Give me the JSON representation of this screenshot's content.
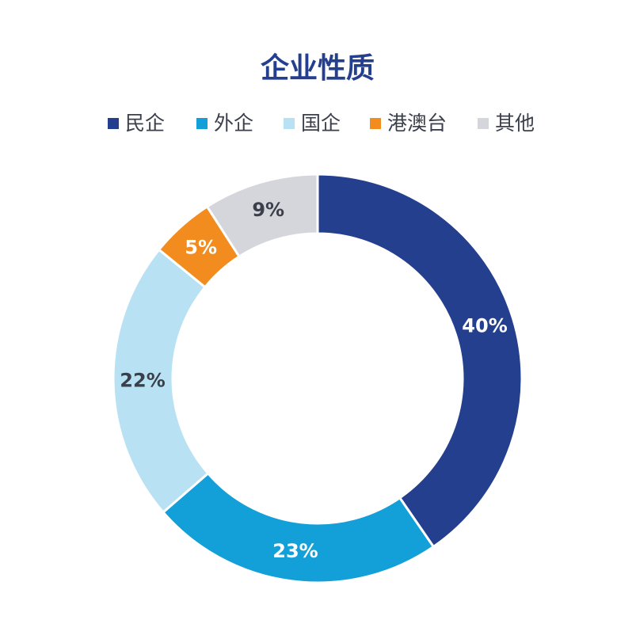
{
  "chart_data": {
    "type": "pie",
    "title": "企业性质",
    "categories": [
      "民企",
      "外企",
      "国企",
      "港澳台",
      "其他"
    ],
    "values": [
      40,
      23,
      22,
      5,
      9
    ],
    "value_labels": [
      "40%",
      "23%",
      "22%",
      "5%",
      "9%"
    ],
    "colors": [
      "#253f8f",
      "#139fd8",
      "#b8e2f4",
      "#f28c1e",
      "#d5d6db"
    ],
    "label_colors": [
      "#ffffff",
      "#ffffff",
      "#3a3f4a",
      "#ffffff",
      "#3a3f4a"
    ],
    "legend": "top"
  }
}
